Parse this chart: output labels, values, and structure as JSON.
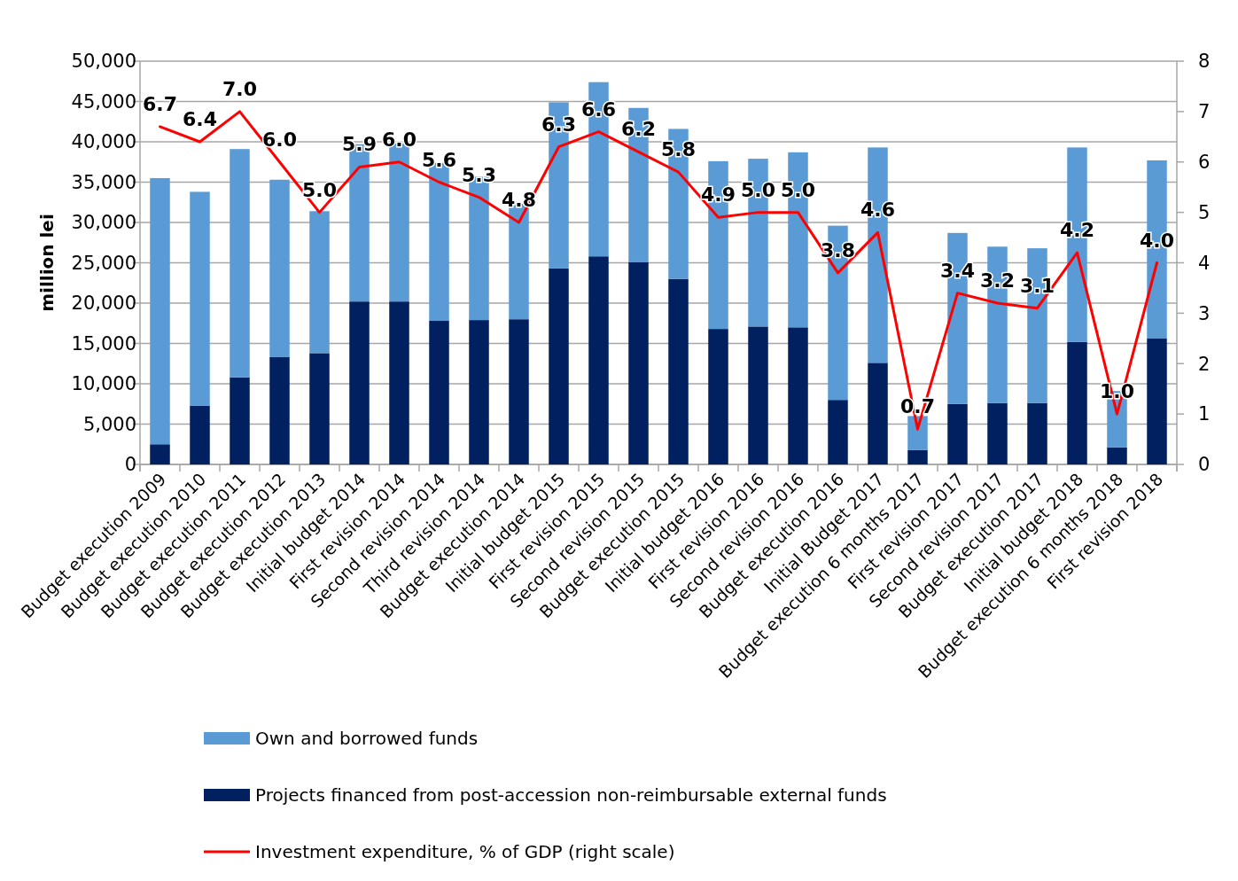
{
  "chart_data": {
    "type": "bar",
    "stacked": true,
    "ylabel": "million lei",
    "categories": [
      "Budget execution 2009",
      "Budget execution 2010",
      "Budget execution 2011",
      "Budget execution 2012",
      "Budget execution 2013",
      "Initial budget 2014",
      "First revision 2014",
      "Second revision 2014",
      "Third revision 2014",
      "Budget execution 2014",
      "Initial budget 2015",
      "First revision 2015",
      "Second revision 2015",
      "Budget execution 2015",
      "Initial budget 2016",
      "First revision 2016",
      "Second revision 2016",
      "Budget execution 2016",
      "Initial Budget 2017",
      "Budget execution 6 months 2017",
      "First revision 2017",
      "Second revision 2017",
      "Budget execution 2017",
      "Initial budget 2018",
      "Budget execution 6 months 2018",
      "First revision 2018"
    ],
    "series": [
      {
        "name": "Projects financed from post-accession non-reimbursable external funds",
        "color": "#002060",
        "values": [
          2500,
          7300,
          10800,
          13300,
          13800,
          20200,
          20200,
          17800,
          17900,
          18000,
          24300,
          25800,
          25100,
          23000,
          16800,
          17100,
          17000,
          8000,
          12600,
          1800,
          7500,
          7600,
          7600,
          15200,
          2100,
          15600
        ]
      },
      {
        "name": "Own and borrowed funds",
        "color": "#5b9bd5",
        "values": [
          33000,
          26500,
          28300,
          22000,
          17600,
          19500,
          19600,
          19600,
          17800,
          14300,
          20600,
          21600,
          19100,
          18600,
          20800,
          20800,
          21700,
          21600,
          26700,
          4200,
          21200,
          19400,
          19200,
          24100,
          7000,
          22100
        ]
      },
      {
        "name": "Investment expenditure, % of GDP (right scale)",
        "type": "line",
        "axis": "y2",
        "color": "#ff0000",
        "values": [
          6.7,
          6.4,
          7.0,
          6.0,
          5.0,
          5.9,
          6.0,
          5.6,
          5.3,
          4.8,
          6.3,
          6.6,
          6.2,
          5.8,
          4.9,
          5.0,
          5.0,
          3.8,
          4.6,
          0.7,
          3.4,
          3.2,
          3.1,
          4.2,
          1.0,
          4.0
        ],
        "value_labels": [
          "6.7",
          "6.4",
          "7.0",
          "6.0",
          "5.0",
          "5.9",
          "6.0",
          "5.6",
          "5.3",
          "4.8",
          "6.3",
          "6.6",
          "6.2",
          "5.8",
          "4.9",
          "5.0",
          "5.0",
          "3.8",
          "4.6",
          "0.7",
          "3.4",
          "3.2",
          "3.1",
          "4.2",
          "1.0",
          "4.0"
        ]
      }
    ],
    "ylim": [
      0,
      50000
    ],
    "yticks": [
      {
        "value": 0,
        "label": "0"
      },
      {
        "value": 5000,
        "label": "5,000"
      },
      {
        "value": 10000,
        "label": "10,000"
      },
      {
        "value": 15000,
        "label": "15,000"
      },
      {
        "value": 20000,
        "label": "20,000"
      },
      {
        "value": 25000,
        "label": "25,000"
      },
      {
        "value": 30000,
        "label": "30,000"
      },
      {
        "value": 35000,
        "label": "35,000"
      },
      {
        "value": 40000,
        "label": "40,000"
      },
      {
        "value": 45000,
        "label": "45,000"
      },
      {
        "value": 50000,
        "label": "50,000"
      }
    ],
    "y2lim": [
      0,
      8
    ],
    "y2ticks": [
      0,
      1,
      2,
      3,
      4,
      5,
      6,
      7,
      8
    ],
    "grid": "y",
    "legend": "bottom"
  }
}
